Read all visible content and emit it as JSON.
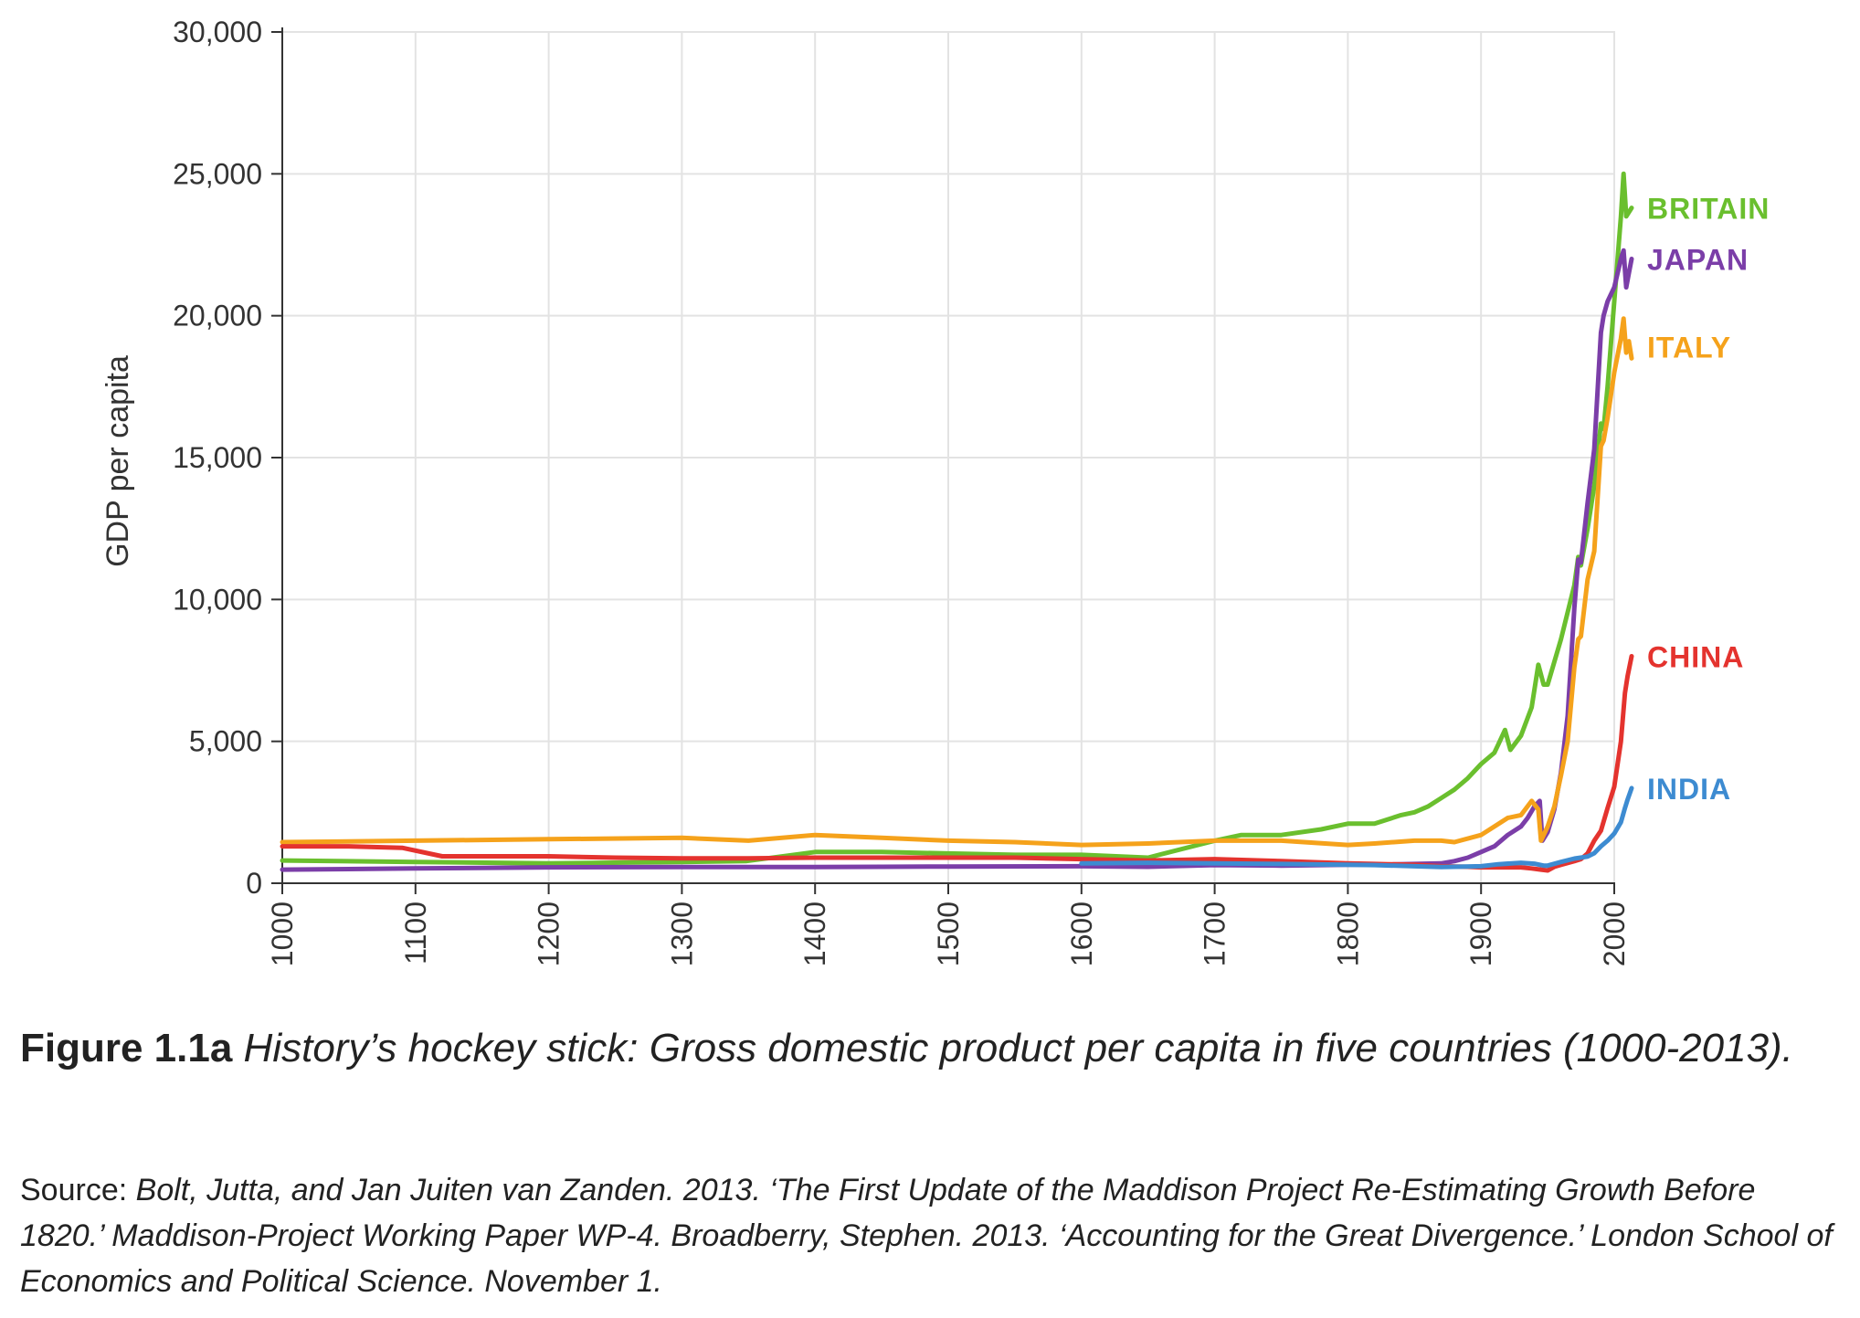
{
  "caption": {
    "figure_number": "Figure 1.1a",
    "title": "History’s hockey stick: Gross domestic product per capita in five countries (1000-2013)."
  },
  "source": {
    "label": "Source:",
    "text": "Bolt, Jutta, and Jan Juiten van Zanden. 2013. ‘The First Update of the Maddison Project Re-Estimating Growth Before 1820.’ Maddison-Project Working Paper WP-4. Broadberry, Stephen. 2013. ‘Accounting for the Great Divergence.’ London School of Economics and Political Science. November 1."
  },
  "chart_data": {
    "type": "line",
    "title": "",
    "xlabel": "",
    "ylabel": "GDP per capita",
    "xlim": [
      1000,
      2013
    ],
    "ylim": [
      0,
      30000
    ],
    "x_ticks": [
      "1000",
      "1100",
      "1200",
      "1300",
      "1400",
      "1500",
      "1600",
      "1700",
      "1800",
      "1900",
      "2000"
    ],
    "y_ticks": [
      "0",
      "5,000",
      "10,000",
      "15,000",
      "20,000",
      "25,000",
      "30,000"
    ],
    "x_tick_values": [
      1000,
      1100,
      1200,
      1300,
      1400,
      1500,
      1600,
      1700,
      1800,
      1900,
      2000
    ],
    "y_tick_values": [
      0,
      5000,
      10000,
      15000,
      20000,
      25000,
      30000
    ],
    "grid": true,
    "legend": "direct labels at right end of lines",
    "series": [
      {
        "name": "BRITAIN",
        "color": "#6abf2e",
        "points": [
          [
            1000,
            800
          ],
          [
            1100,
            750
          ],
          [
            1200,
            700
          ],
          [
            1300,
            750
          ],
          [
            1348,
            780
          ],
          [
            1400,
            1100
          ],
          [
            1450,
            1100
          ],
          [
            1500,
            1050
          ],
          [
            1550,
            1000
          ],
          [
            1600,
            1000
          ],
          [
            1650,
            900
          ],
          [
            1700,
            1500
          ],
          [
            1720,
            1700
          ],
          [
            1750,
            1700
          ],
          [
            1780,
            1900
          ],
          [
            1800,
            2100
          ],
          [
            1820,
            2100
          ],
          [
            1840,
            2400
          ],
          [
            1850,
            2500
          ],
          [
            1860,
            2700
          ],
          [
            1870,
            3000
          ],
          [
            1880,
            3300
          ],
          [
            1890,
            3700
          ],
          [
            1900,
            4200
          ],
          [
            1910,
            4600
          ],
          [
            1913,
            4900
          ],
          [
            1918,
            5400
          ],
          [
            1922,
            4700
          ],
          [
            1930,
            5200
          ],
          [
            1938,
            6200
          ],
          [
            1943,
            7700
          ],
          [
            1947,
            7000
          ],
          [
            1950,
            7000
          ],
          [
            1960,
            8600
          ],
          [
            1970,
            10500
          ],
          [
            1973,
            11500
          ],
          [
            1975,
            11200
          ],
          [
            1980,
            12500
          ],
          [
            1985,
            14000
          ],
          [
            1990,
            16200
          ],
          [
            1992,
            16000
          ],
          [
            1995,
            17500
          ],
          [
            2000,
            20500
          ],
          [
            2005,
            23500
          ],
          [
            2007,
            25000
          ],
          [
            2009,
            23500
          ],
          [
            2013,
            23800
          ]
        ]
      },
      {
        "name": "JAPAN",
        "color": "#7b3ea8",
        "points": [
          [
            1000,
            480
          ],
          [
            1100,
            520
          ],
          [
            1200,
            560
          ],
          [
            1300,
            570
          ],
          [
            1400,
            570
          ],
          [
            1450,
            580
          ],
          [
            1500,
            590
          ],
          [
            1600,
            600
          ],
          [
            1650,
            580
          ],
          [
            1700,
            640
          ],
          [
            1750,
            620
          ],
          [
            1800,
            650
          ],
          [
            1820,
            650
          ],
          [
            1850,
            680
          ],
          [
            1870,
            700
          ],
          [
            1880,
            780
          ],
          [
            1890,
            900
          ],
          [
            1900,
            1100
          ],
          [
            1910,
            1300
          ],
          [
            1920,
            1700
          ],
          [
            1930,
            2000
          ],
          [
            1935,
            2300
          ],
          [
            1940,
            2700
          ],
          [
            1944,
            2900
          ],
          [
            1946,
            1500
          ],
          [
            1950,
            1800
          ],
          [
            1955,
            2600
          ],
          [
            1960,
            3900
          ],
          [
            1965,
            5900
          ],
          [
            1970,
            9700
          ],
          [
            1973,
            11400
          ],
          [
            1975,
            11300
          ],
          [
            1980,
            13400
          ],
          [
            1985,
            15300
          ],
          [
            1990,
            19400
          ],
          [
            1992,
            20000
          ],
          [
            1995,
            20500
          ],
          [
            2000,
            21000
          ],
          [
            2005,
            22000
          ],
          [
            2007,
            22300
          ],
          [
            2009,
            21000
          ],
          [
            2011,
            21500
          ],
          [
            2013,
            22000
          ]
        ]
      },
      {
        "name": "ITALY",
        "color": "#f5a21b",
        "points": [
          [
            1000,
            1450
          ],
          [
            1100,
            1500
          ],
          [
            1200,
            1550
          ],
          [
            1300,
            1600
          ],
          [
            1350,
            1500
          ],
          [
            1400,
            1700
          ],
          [
            1450,
            1600
          ],
          [
            1500,
            1500
          ],
          [
            1550,
            1450
          ],
          [
            1600,
            1350
          ],
          [
            1650,
            1400
          ],
          [
            1700,
            1500
          ],
          [
            1750,
            1500
          ],
          [
            1800,
            1350
          ],
          [
            1820,
            1400
          ],
          [
            1850,
            1500
          ],
          [
            1870,
            1500
          ],
          [
            1880,
            1450
          ],
          [
            1900,
            1700
          ],
          [
            1910,
            2000
          ],
          [
            1920,
            2300
          ],
          [
            1930,
            2400
          ],
          [
            1938,
            2900
          ],
          [
            1943,
            2600
          ],
          [
            1945,
            1500
          ],
          [
            1950,
            2000
          ],
          [
            1955,
            2700
          ],
          [
            1960,
            3800
          ],
          [
            1965,
            5000
          ],
          [
            1970,
            7600
          ],
          [
            1973,
            8600
          ],
          [
            1975,
            8700
          ],
          [
            1980,
            10700
          ],
          [
            1985,
            11700
          ],
          [
            1990,
            15400
          ],
          [
            1992,
            15600
          ],
          [
            1995,
            16400
          ],
          [
            2000,
            18000
          ],
          [
            2005,
            19200
          ],
          [
            2007,
            19900
          ],
          [
            2009,
            18700
          ],
          [
            2011,
            19100
          ],
          [
            2013,
            18500
          ]
        ]
      },
      {
        "name": "CHINA",
        "color": "#e4332e",
        "points": [
          [
            1000,
            1300
          ],
          [
            1050,
            1300
          ],
          [
            1090,
            1250
          ],
          [
            1120,
            950
          ],
          [
            1200,
            950
          ],
          [
            1250,
            900
          ],
          [
            1300,
            880
          ],
          [
            1350,
            880
          ],
          [
            1400,
            900
          ],
          [
            1450,
            900
          ],
          [
            1500,
            900
          ],
          [
            1550,
            900
          ],
          [
            1600,
            850
          ],
          [
            1650,
            800
          ],
          [
            1700,
            850
          ],
          [
            1750,
            780
          ],
          [
            1800,
            700
          ],
          [
            1820,
            680
          ],
          [
            1850,
            650
          ],
          [
            1870,
            600
          ],
          [
            1890,
            580
          ],
          [
            1900,
            560
          ],
          [
            1913,
            560
          ],
          [
            1930,
            560
          ],
          [
            1938,
            520
          ],
          [
            1945,
            480
          ],
          [
            1950,
            450
          ],
          [
            1955,
            580
          ],
          [
            1960,
            650
          ],
          [
            1970,
            780
          ],
          [
            1975,
            850
          ],
          [
            1980,
            1050
          ],
          [
            1985,
            1500
          ],
          [
            1990,
            1850
          ],
          [
            1995,
            2650
          ],
          [
            2000,
            3400
          ],
          [
            2005,
            5000
          ],
          [
            2008,
            6700
          ],
          [
            2010,
            7300
          ],
          [
            2013,
            8000
          ]
        ]
      },
      {
        "name": "INDIA",
        "color": "#3d8bd1",
        "points": [
          [
            1600,
            700
          ],
          [
            1650,
            720
          ],
          [
            1700,
            700
          ],
          [
            1750,
            680
          ],
          [
            1800,
            650
          ],
          [
            1820,
            640
          ],
          [
            1850,
            600
          ],
          [
            1870,
            570
          ],
          [
            1880,
            580
          ],
          [
            1900,
            600
          ],
          [
            1913,
            670
          ],
          [
            1930,
            720
          ],
          [
            1940,
            690
          ],
          [
            1947,
            620
          ],
          [
            1950,
            620
          ],
          [
            1960,
            750
          ],
          [
            1970,
            870
          ],
          [
            1980,
            940
          ],
          [
            1985,
            1060
          ],
          [
            1990,
            1300
          ],
          [
            1995,
            1500
          ],
          [
            2000,
            1750
          ],
          [
            2005,
            2150
          ],
          [
            2008,
            2650
          ],
          [
            2010,
            2950
          ],
          [
            2013,
            3350
          ]
        ]
      }
    ]
  }
}
